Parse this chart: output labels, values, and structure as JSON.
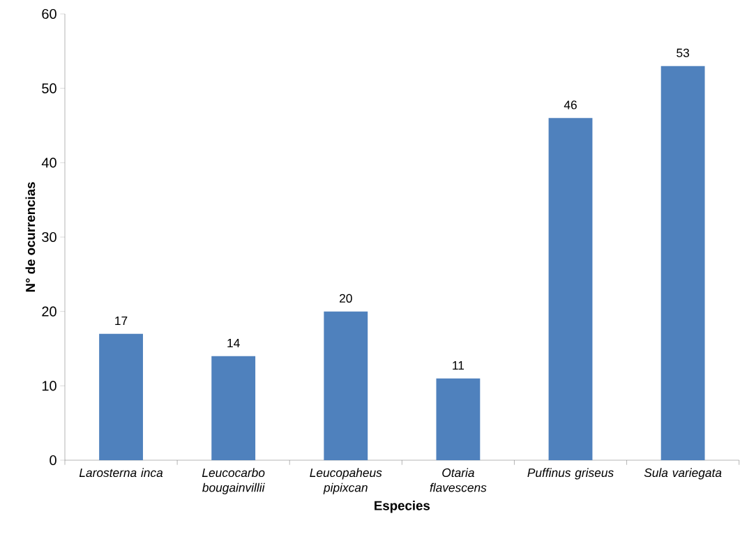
{
  "chart_data": {
    "type": "bar",
    "xlabel": "Especies",
    "ylabel": "N° de ocurrencias",
    "categories": [
      "Larosterna inca",
      "Leucocarbo bougainvillii",
      "Leucopaheus pipixcan",
      "Otaria flavescens",
      "Puffinus griseus",
      "Sula variegata"
    ],
    "values": [
      17,
      14,
      20,
      11,
      46,
      53
    ],
    "color": "#4f81bd",
    "ylim": [
      0,
      60
    ],
    "yticks": [
      0,
      10,
      20,
      30,
      40,
      50,
      60
    ],
    "grid": false,
    "data_labels": true
  }
}
